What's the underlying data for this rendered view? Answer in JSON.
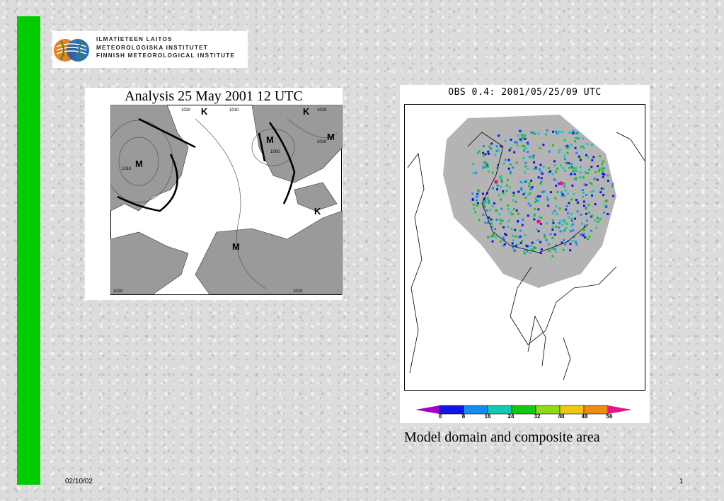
{
  "slide": {
    "institute_lines": [
      "ILMATIETEEN LAITOS",
      "METEOROLOGISKA INSTITUTET",
      "FINNISH METEOROLOGICAL INSTITUTE"
    ],
    "analysis_title": "Analysis 25 May 2001 12 UTC",
    "obs_title": "OBS 0.4: 2001/05/25/09 UTC",
    "caption": "Model domain and composite area",
    "date": "02/10/02",
    "page_number": "1"
  },
  "weather_map": {
    "pressure_systems": [
      "K",
      "K",
      "M",
      "M",
      "M",
      "K",
      "M"
    ],
    "isobar_labels": [
      "1020",
      "1010",
      "1010",
      "1010",
      "1000",
      "1010",
      "1020",
      "1010"
    ]
  },
  "colorbar": {
    "ticks": [
      "0",
      "8",
      "16",
      "24",
      "32",
      "40",
      "48",
      "56"
    ],
    "colors": [
      "#1414e6",
      "#148cf0",
      "#14c8b4",
      "#14c814",
      "#8cdc14",
      "#f0c814",
      "#f08c14"
    ],
    "low_color": "#a000c8",
    "high_color": "#e6148c"
  },
  "colors": {
    "accent_bar": "#00cc00",
    "radar_coverage": "#b4b4b4"
  }
}
